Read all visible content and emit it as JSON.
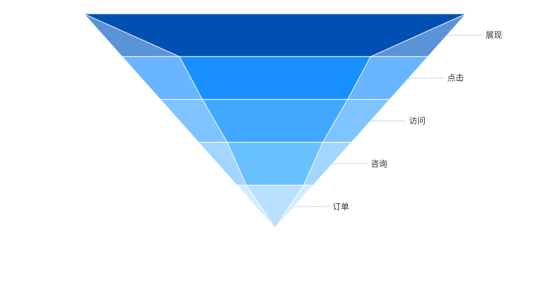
{
  "chart_data": {
    "type": "funnel",
    "title": "",
    "series": [
      {
        "name": "",
        "data": [
          {
            "name": "展现",
            "value": 100,
            "actual": 100
          },
          {
            "name": "点击",
            "value": 80,
            "actual": 50
          },
          {
            "name": "访问",
            "value": 60,
            "actual": 38
          },
          {
            "name": "咨询",
            "value": 40,
            "actual": 25
          },
          {
            "name": "订单",
            "value": 20,
            "actual": 15
          }
        ]
      }
    ]
  },
  "colors": {
    "outer": [
      "#5b93d8",
      "#69b5ff",
      "#80c4ff",
      "#a3d6ff",
      "#d2ecff"
    ],
    "inner": [
      "#0050b3",
      "#1890ff",
      "#40a9ff",
      "#69c0ff",
      "#bae0ff"
    ],
    "leader": "#9ec5f0",
    "label": "#333333"
  }
}
